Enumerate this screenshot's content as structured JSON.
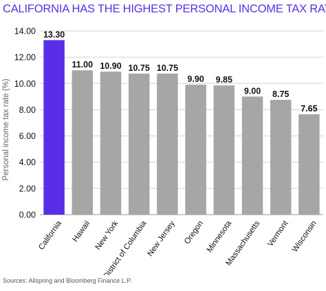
{
  "chart_data": {
    "type": "bar",
    "title": "CALIFORNIA HAS THE HIGHEST PERSONAL INCOME TAX RATE",
    "ylabel": "Personal income tax rate (%)",
    "xlabel": "",
    "categories": [
      "California",
      "Hawaii",
      "New York",
      "District of Columbia",
      "New Jersey",
      "Oregon",
      "Minnesota",
      "Massachusetts",
      "Vermont",
      "Wisconsin"
    ],
    "values": [
      13.3,
      11.0,
      10.9,
      10.75,
      10.75,
      9.9,
      9.85,
      9.0,
      8.75,
      7.65
    ],
    "value_labels": [
      "13.30",
      "11.00",
      "10.90",
      "10.75",
      "10.75",
      "9.90",
      "9.85",
      "9.00",
      "8.75",
      "7.65"
    ],
    "yticks": [
      "0.00",
      "2.00",
      "4.00",
      "6.00",
      "8.00",
      "10.00",
      "12.00",
      "14.00"
    ],
    "ylim": [
      0,
      14
    ],
    "grid": true,
    "legend": false,
    "highlight_index": 0,
    "colors": {
      "highlight": "#5a2ee6",
      "bar": "#a6a6a6",
      "grid": "#d0d0d0",
      "title": "#5a2ee6",
      "text": "#111111",
      "axis_label": "#666666"
    }
  },
  "source": "Sources: Allspring and Bloomberg Finance L.P."
}
